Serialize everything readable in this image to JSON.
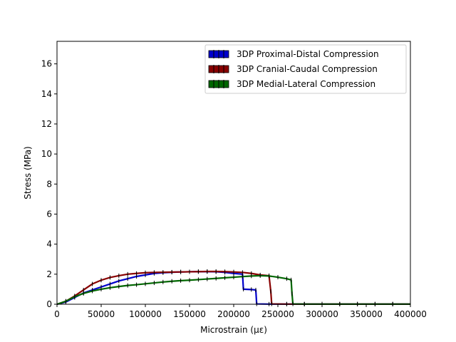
{
  "chart_data": {
    "type": "line",
    "title": "",
    "xlabel": "Microstrain (με)",
    "ylabel": "Stress (MPa)",
    "xlim": [
      0,
      400000
    ],
    "ylim": [
      0,
      17.5
    ],
    "x_ticks": [
      0,
      50000,
      100000,
      150000,
      200000,
      250000,
      300000,
      350000,
      400000
    ],
    "x_tick_labels": [
      "0",
      "50000",
      "100000",
      "150000",
      "200000",
      "250000",
      "300000",
      "350000",
      "400000"
    ],
    "y_ticks": [
      0,
      2,
      4,
      6,
      8,
      10,
      12,
      14,
      16
    ],
    "y_tick_labels": [
      "0",
      "2",
      "4",
      "6",
      "8",
      "10",
      "12",
      "14",
      "16"
    ],
    "grid": false,
    "legend_position": "top-right",
    "series": [
      {
        "name": "3DP Proximal-Distal Compression",
        "color": "#0000cc",
        "x": [
          0,
          10000,
          20000,
          30000,
          40000,
          50000,
          60000,
          70000,
          80000,
          90000,
          100000,
          110000,
          120000,
          130000,
          140000,
          150000,
          160000,
          170000,
          180000,
          190000,
          200000,
          210000,
          211000,
          220000,
          225000,
          226000,
          240000,
          260000,
          280000,
          300000,
          320000,
          340000,
          360000,
          380000,
          400000
        ],
        "y": [
          0,
          0.15,
          0.45,
          0.75,
          0.95,
          1.15,
          1.35,
          1.55,
          1.7,
          1.85,
          1.95,
          2.05,
          2.1,
          2.13,
          2.15,
          2.16,
          2.17,
          2.17,
          2.16,
          2.12,
          2.05,
          2.0,
          1.0,
          0.98,
          0.95,
          0.02,
          0.01,
          0.01,
          0.01,
          0.01,
          0.01,
          0.01,
          0.01,
          0.01,
          0.01
        ]
      },
      {
        "name": "3DP Cranial-Caudal Compression",
        "color": "#880000",
        "x": [
          0,
          10000,
          20000,
          30000,
          40000,
          50000,
          60000,
          70000,
          80000,
          90000,
          100000,
          110000,
          120000,
          130000,
          140000,
          150000,
          160000,
          170000,
          180000,
          190000,
          200000,
          210000,
          220000,
          230000,
          240000,
          242000,
          243000,
          260000,
          280000,
          300000,
          320000,
          340000,
          360000,
          380000,
          400000
        ],
        "y": [
          0,
          0.2,
          0.55,
          0.95,
          1.35,
          1.6,
          1.78,
          1.9,
          2.0,
          2.05,
          2.1,
          2.12,
          2.13,
          2.14,
          2.15,
          2.16,
          2.17,
          2.18,
          2.18,
          2.17,
          2.15,
          2.12,
          2.05,
          1.95,
          1.9,
          0.85,
          0.02,
          0.01,
          0.01,
          0.01,
          0.01,
          0.01,
          0.01,
          0.01,
          0.01
        ]
      },
      {
        "name": "3DP Medial-Lateral Compression",
        "color": "#006600",
        "x": [
          0,
          10000,
          20000,
          30000,
          40000,
          50000,
          60000,
          70000,
          80000,
          90000,
          100000,
          110000,
          120000,
          130000,
          140000,
          150000,
          160000,
          170000,
          180000,
          190000,
          200000,
          210000,
          220000,
          230000,
          240000,
          250000,
          260000,
          265000,
          266000,
          267000,
          280000,
          300000,
          320000,
          340000,
          360000,
          380000,
          400000
        ],
        "y": [
          0,
          0.2,
          0.5,
          0.72,
          0.88,
          1.0,
          1.1,
          1.18,
          1.25,
          1.3,
          1.36,
          1.42,
          1.48,
          1.53,
          1.57,
          1.6,
          1.64,
          1.68,
          1.72,
          1.76,
          1.8,
          1.84,
          1.88,
          1.9,
          1.88,
          1.8,
          1.7,
          1.62,
          0.7,
          0.02,
          0.01,
          0.01,
          0.01,
          0.01,
          0.01,
          0.01,
          0.01
        ]
      }
    ]
  }
}
